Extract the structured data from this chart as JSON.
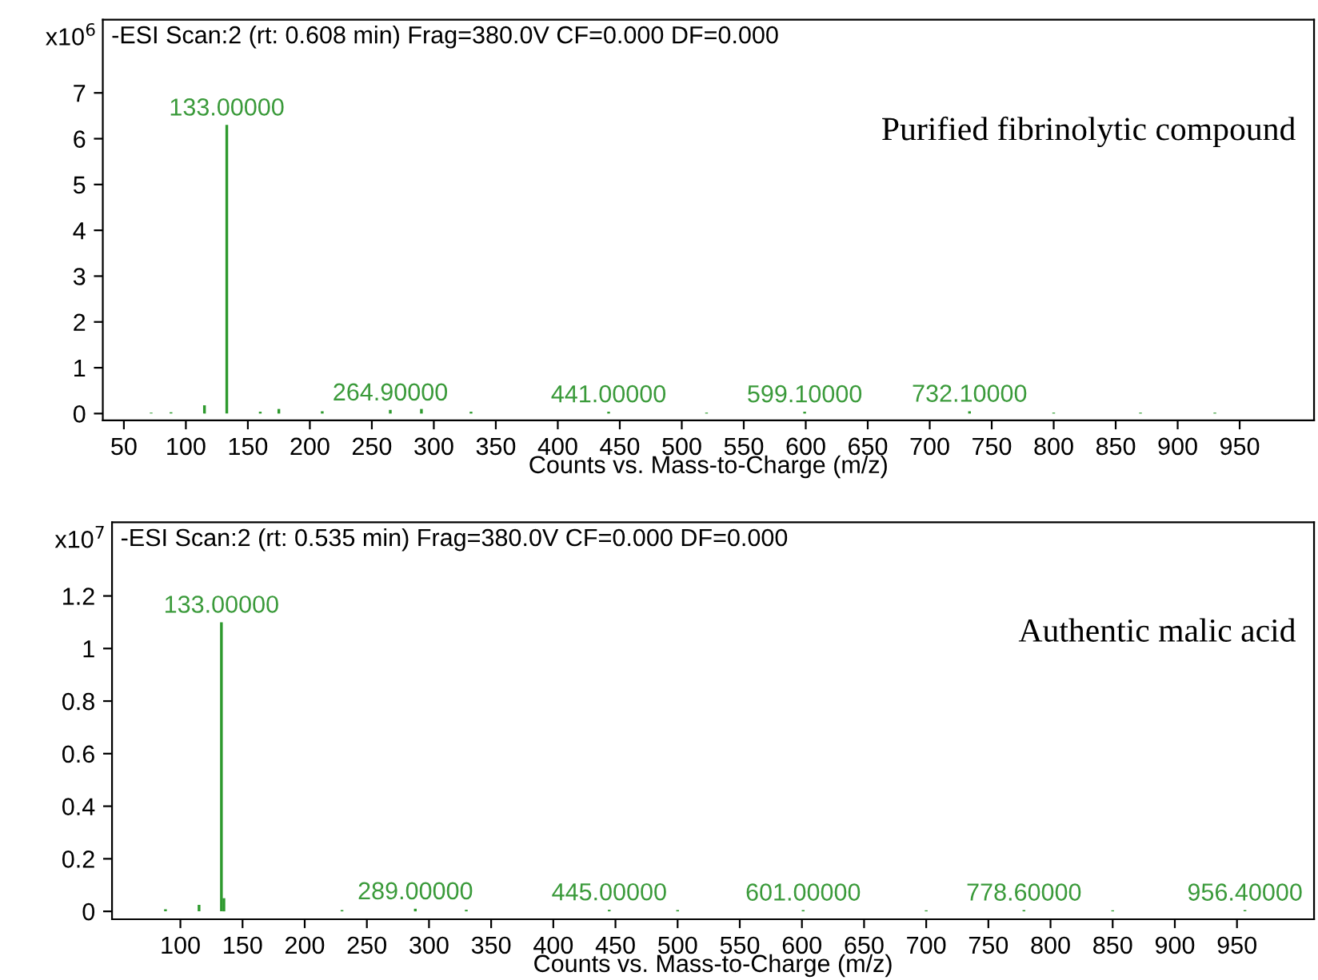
{
  "chart_data": [
    {
      "type": "bar",
      "title": "-ESI Scan:2 (rt: 0.608 min) Frag=380.0V CF=0.000 DF=0.000",
      "subtitle": "Purified fibrinolytic compound",
      "xlabel": "Counts vs. Mass-to-Charge (m/z)",
      "ylabel": "x10$^{6}$",
      "x": [
        72,
        88,
        115,
        133,
        160,
        175,
        210,
        264.9,
        290,
        330,
        380,
        441,
        480,
        520,
        599.1,
        640,
        732.1,
        800,
        870,
        930
      ],
      "series": [
        {
          "color": "#2e9a2e",
          "values": [
            0.02,
            0.03,
            0.18,
            6.3,
            0.04,
            0.1,
            0.05,
            0.08,
            0.1,
            0.04,
            null,
            0.04,
            null,
            0.02,
            0.04,
            null,
            0.05,
            0.02,
            0.02,
            0.02
          ]
        }
      ],
      "annotations": [
        {
          "text": "133.00000",
          "x": 133,
          "y": 6.3
        },
        {
          "text": "264.90000",
          "x": 264.9,
          "y": 0.08
        },
        {
          "text": "441.00000",
          "x": 441,
          "y": 0.04
        },
        {
          "text": "599.10000",
          "x": 599.1,
          "y": 0.04
        },
        {
          "text": "732.10000",
          "x": 732.1,
          "y": 0.05
        }
      ],
      "xlim": [
        33,
        1010
      ],
      "xticks": [
        50,
        100,
        150,
        200,
        250,
        300,
        350,
        400,
        450,
        500,
        550,
        600,
        650,
        700,
        750,
        800,
        850,
        900,
        950
      ],
      "ylim": [
        -0.15,
        8.6
      ],
      "yticks": [
        0,
        1,
        2,
        3,
        4,
        5,
        6,
        7
      ],
      "grid": false,
      "legend": false
    },
    {
      "type": "bar",
      "title": "-ESI Scan:2 (rt: 0.535 min) Frag=380.0V CF=0.000 DF=0.000",
      "subtitle": "Authentic malic acid",
      "xlabel": "Counts vs. Mass-to-Charge (m/z)",
      "ylabel": "x10$^{7}$",
      "x": [
        88,
        115,
        133,
        135,
        230,
        289,
        330,
        445,
        500,
        601,
        700,
        778.6,
        850,
        956.4
      ],
      "series": [
        {
          "color": "#2e9a2e",
          "values": [
            0.008,
            0.025,
            1.1,
            0.05,
            0.005,
            0.01,
            0.006,
            0.006,
            0.005,
            0.005,
            0.004,
            0.005,
            0.004,
            0.005
          ]
        }
      ],
      "annotations": [
        {
          "text": "133.00000",
          "x": 133,
          "y": 1.1
        },
        {
          "text": "289.00000",
          "x": 289,
          "y": 0.01
        },
        {
          "text": "445.00000",
          "x": 445,
          "y": 0.006
        },
        {
          "text": "601.00000",
          "x": 601,
          "y": 0.005
        },
        {
          "text": "778.60000",
          "x": 778.6,
          "y": 0.005
        },
        {
          "text": "956.40000",
          "x": 956.4,
          "y": 0.005
        }
      ],
      "xlim": [
        45,
        1012
      ],
      "xticks": [
        100,
        150,
        200,
        250,
        300,
        350,
        400,
        450,
        500,
        550,
        600,
        650,
        700,
        750,
        800,
        850,
        900,
        950
      ],
      "ylim": [
        -0.03,
        1.48
      ],
      "yticks": [
        0,
        0.2,
        0.4,
        0.6,
        0.8,
        1,
        1.2
      ],
      "grid": false,
      "legend": false
    }
  ]
}
